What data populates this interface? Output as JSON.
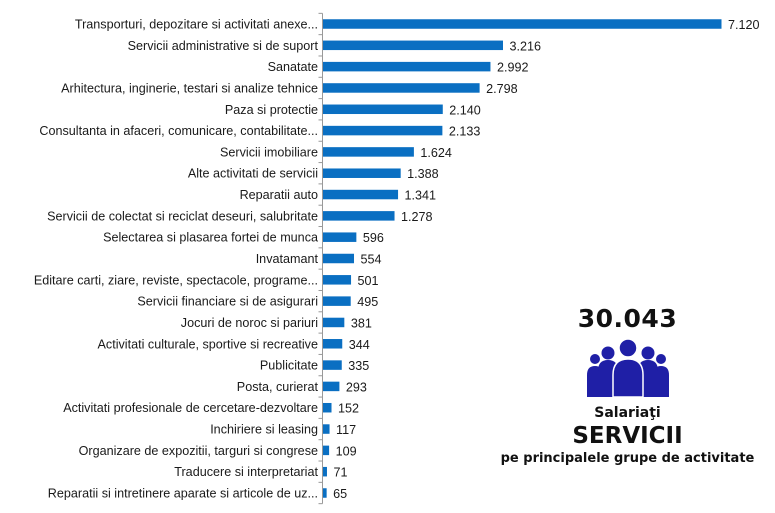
{
  "chart_data": {
    "type": "bar",
    "orientation": "horizontal",
    "categories": [
      "Transporturi, depozitare si activitati anexe...",
      "Servicii administrative si de suport",
      "Sanatate",
      "Arhitectura, inginerie, testari si analize tehnice",
      "Paza si protectie",
      "Consultanta in afaceri, comunicare, contabilitate...",
      "Servicii imobiliare",
      "Alte activitati de servicii",
      "Reparatii auto",
      "Servicii de colectat si reciclat deseuri, salubritate",
      "Selectarea si plasarea fortei de munca",
      "Invatamant",
      "Editare carti, ziare, reviste, spectacole, programe...",
      "Servicii financiare si de asigurari",
      "Jocuri de noroc si pariuri",
      "Activitati culturale, sportive si recreative",
      "Publicitate",
      "Posta, curierat",
      "Activitati profesionale de cercetare-dezvoltare",
      "Inchiriere si leasing",
      "Organizare de expozitii, targuri si congrese",
      "Traducere si interpretariat",
      "Reparatii si intretinere aparate si articole de uz..."
    ],
    "values": [
      7120,
      3216,
      2992,
      2798,
      2140,
      2133,
      1624,
      1388,
      1341,
      1278,
      596,
      554,
      501,
      495,
      381,
      344,
      335,
      293,
      152,
      117,
      109,
      71,
      65
    ],
    "value_labels": [
      "7.120",
      "3.216",
      "2.992",
      "2.798",
      "2.140",
      "2.133",
      "1.624",
      "1.388",
      "1.341",
      "1.278",
      "596",
      "554",
      "501",
      "495",
      "381",
      "344",
      "335",
      "293",
      "152",
      "117",
      "109",
      "71",
      "65"
    ],
    "title": "",
    "xlabel": "",
    "ylabel": "",
    "xlim": [
      0,
      7120
    ],
    "grid": false,
    "bar_color": "#0a6fc2"
  },
  "panel": {
    "total": "30.043",
    "icon": "people-group-icon",
    "icon_color": "#1f1fa6",
    "line1": "Salariaţi",
    "line2": "SERVICII",
    "line3": "pe principalele grupe de activitate"
  }
}
